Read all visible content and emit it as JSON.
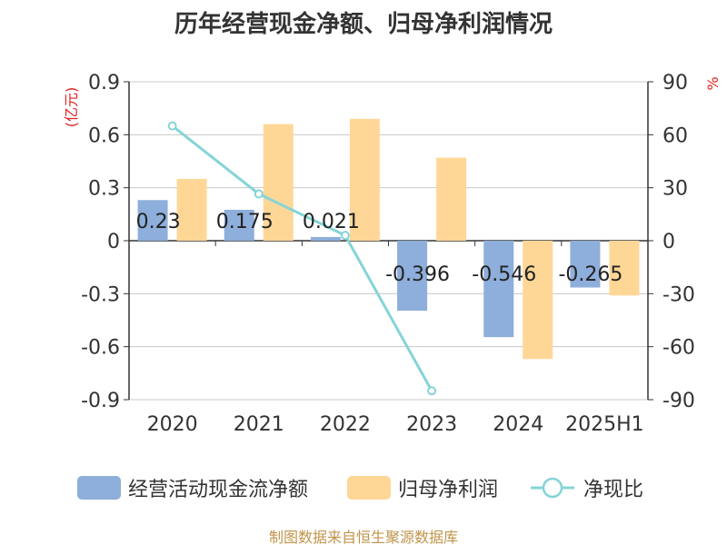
{
  "source": "制图数据来自恒生聚源数据库",
  "chart_data": {
    "type": "bar",
    "title": "历年经营现金净额、归母净利润情况",
    "categories": [
      "2020",
      "2021",
      "2022",
      "2023",
      "2024",
      "2025H1"
    ],
    "ylabel_left": "(亿元)",
    "ylabel_right": "%",
    "ylim_left": [
      -0.9,
      0.9
    ],
    "ylim_right": [
      -90,
      90
    ],
    "yticks_left": [
      "0.9",
      "0.6",
      "0.3",
      "0",
      "-0.3",
      "-0.6",
      "-0.9"
    ],
    "yticks_right": [
      "90",
      "60",
      "30",
      "0",
      "-30",
      "-60",
      "-90"
    ],
    "grid": true,
    "legend_position": "bottom",
    "series": [
      {
        "name": "经营活动现金流净额",
        "type": "bar",
        "axis": "left",
        "color": "#8eaedb",
        "values": [
          0.23,
          0.175,
          0.021,
          -0.396,
          -0.546,
          -0.265
        ],
        "labels": [
          "0.23",
          "0.175",
          "0.021",
          "-0.396",
          "-0.546",
          "-0.265"
        ]
      },
      {
        "name": "归母净利润",
        "type": "bar",
        "axis": "left",
        "color": "#fed797",
        "values": [
          0.35,
          0.66,
          0.69,
          0.47,
          -0.67,
          -0.31
        ]
      },
      {
        "name": "净现比",
        "type": "line",
        "axis": "right",
        "color": "#85d4d8",
        "values": [
          65,
          26.5,
          3,
          -85,
          null,
          null
        ]
      }
    ]
  }
}
